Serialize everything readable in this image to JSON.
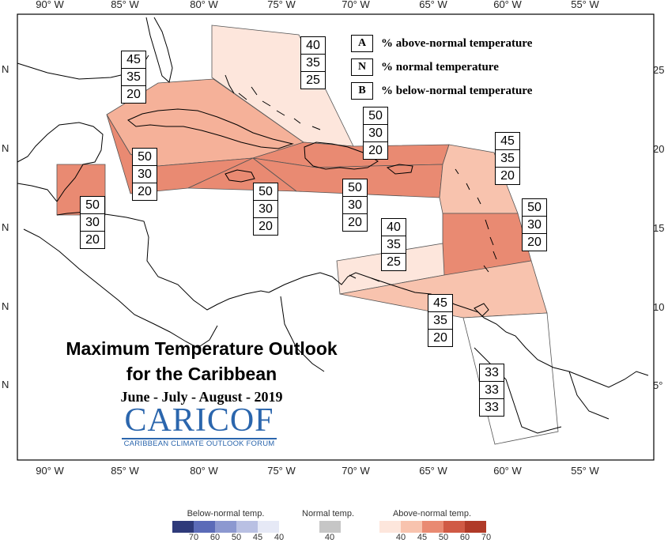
{
  "map": {
    "top_ticks": [
      "90° W",
      "85° W",
      "80° W",
      "75° W",
      "70° W",
      "65° W",
      "60° W",
      "55° W"
    ],
    "bottom_ticks": [
      "90° W",
      "85° W",
      "80° W",
      "75° W",
      "70° W",
      "65° W",
      "60° W",
      "55° W"
    ],
    "left_lat": [
      "N",
      "N",
      "N",
      "N",
      "N"
    ],
    "right_lat": [
      "25",
      "20",
      "15",
      "10",
      "5°"
    ]
  },
  "legend": [
    {
      "key": "A",
      "text": "% above-normal temperature"
    },
    {
      "key": "N",
      "text": "% normal temperature"
    },
    {
      "key": "B",
      "text": "% below-normal temperature"
    }
  ],
  "regions": [
    {
      "name": "bahamas",
      "color": "#fde6dc",
      "probs": [
        "40",
        "35",
        "25"
      ]
    },
    {
      "name": "cuba",
      "color": "#f5b199",
      "probs": [
        "45",
        "35",
        "20"
      ]
    },
    {
      "name": "cayman-jamaica-basin",
      "color": "#e98a72",
      "probs": [
        "50",
        "30",
        "20"
      ]
    },
    {
      "name": "belize",
      "color": "#e98a72",
      "probs": [
        "50",
        "30",
        "20"
      ]
    },
    {
      "name": "jamaica",
      "color": "#e98a72",
      "probs": [
        "50",
        "30",
        "20"
      ]
    },
    {
      "name": "hispaniola-north",
      "color": "#e98a72",
      "probs": [
        "50",
        "30",
        "20"
      ]
    },
    {
      "name": "hispaniola-puerto-rico",
      "color": "#e98a72",
      "probs": [
        "50",
        "30",
        "20"
      ]
    },
    {
      "name": "leeward-islands",
      "color": "#f8c3ae",
      "probs": [
        "45",
        "35",
        "20"
      ]
    },
    {
      "name": "windward-islands",
      "color": "#e98a72",
      "probs": [
        "50",
        "30",
        "20"
      ]
    },
    {
      "name": "abc-islands",
      "color": "#fde6dc",
      "probs": [
        "40",
        "35",
        "25"
      ]
    },
    {
      "name": "trinidad-tobago",
      "color": "#f8c3ae",
      "probs": [
        "45",
        "35",
        "20"
      ]
    },
    {
      "name": "guianas",
      "color": "#ffffff",
      "probs": [
        "33",
        "33",
        "33"
      ]
    }
  ],
  "title": {
    "line1": "Maximum Temperature Outlook",
    "line2": "for the Caribbean",
    "period": "June - July - August - 2019"
  },
  "logo": {
    "name": "CARICOF",
    "subtitle": "CARIBBEAN CLIMATE OUTLOOK FORUM"
  },
  "colorbar": {
    "below": {
      "title": "Below-normal temp.",
      "ticks": [
        "70",
        "60",
        "50",
        "45",
        "40"
      ],
      "colors": [
        "#2e3a7a",
        "#5b6bb8",
        "#8c98d0",
        "#b9c0e3",
        "#e6e9f6"
      ]
    },
    "normal": {
      "title": "Normal temp.",
      "ticks": [
        "40"
      ],
      "colors": [
        "#c6c6c6"
      ]
    },
    "above": {
      "title": "Above-normal temp.",
      "ticks": [
        "40",
        "45",
        "50",
        "60",
        "70"
      ],
      "colors": [
        "#fde6dc",
        "#f8c3ae",
        "#e98a72",
        "#d05a45",
        "#b03a28"
      ]
    }
  }
}
